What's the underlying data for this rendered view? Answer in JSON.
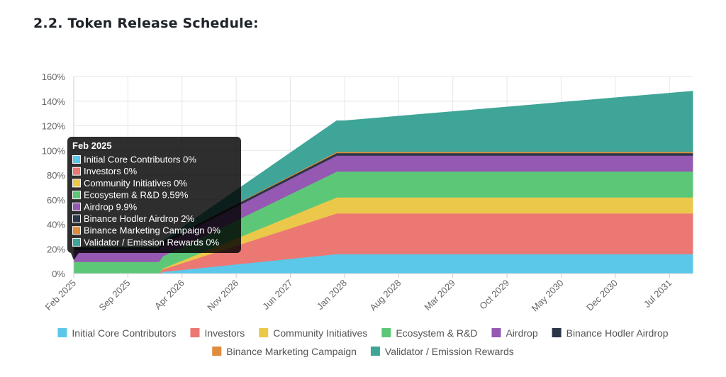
{
  "page": {
    "heading": "2.2. Token Release Schedule:"
  },
  "chart_data": {
    "type": "area",
    "stacked": true,
    "title": "",
    "xlabel": "",
    "ylabel": "",
    "ylim": [
      0,
      160
    ],
    "y_ticks": [
      0,
      20,
      40,
      60,
      80,
      100,
      120,
      140,
      160
    ],
    "y_tick_labels": [
      "0%",
      "20%",
      "40%",
      "60%",
      "80%",
      "100%",
      "120%",
      "140%",
      "160%"
    ],
    "x_range": [
      0,
      80
    ],
    "x_tick_months": [
      0,
      7,
      14,
      21,
      28,
      35,
      42,
      49,
      56,
      63,
      70,
      77
    ],
    "x_tick_labels": [
      "Feb 2025",
      "Sep 2025",
      "Apr 2026",
      "Nov 2026",
      "Jun 2027",
      "Jan 2028",
      "Aug 2028",
      "Mar 2029",
      "Oct 2029",
      "May 2030",
      "Dec 2030",
      "Jul 2031"
    ],
    "grid": true,
    "legend": "bottom",
    "x": [
      0,
      11,
      11.5,
      34,
      35,
      80
    ],
    "series": [
      {
        "name": "Initial Core Contributors",
        "color": "#5bc8ea",
        "values": [
          0,
          0,
          1.5,
          16,
          16,
          16
        ]
      },
      {
        "name": "Investors",
        "color": "#ec7873",
        "values": [
          0,
          0,
          2,
          33,
          33,
          33
        ]
      },
      {
        "name": "Community Initiatives",
        "color": "#ecc84a",
        "values": [
          0,
          0,
          0.7,
          13,
          13,
          13
        ]
      },
      {
        "name": "Ecosystem & R&D",
        "color": "#5cc877",
        "values": [
          9.59,
          9.59,
          9.9,
          21,
          21,
          21
        ]
      },
      {
        "name": "Airdrop",
        "color": "#9558b3",
        "values": [
          9.9,
          9.9,
          10,
          13,
          13,
          13
        ]
      },
      {
        "name": "Binance Hodler Airdrop",
        "color": "#2a3548",
        "values": [
          2,
          2,
          2,
          2,
          2,
          2
        ]
      },
      {
        "name": "Binance Marketing Campaign",
        "color": "#e08c3d",
        "values": [
          0,
          0,
          0,
          1,
          1,
          1
        ]
      },
      {
        "name": "Validator / Emission Rewards",
        "color": "#3ea598",
        "values": [
          0,
          0,
          0.2,
          25,
          25,
          49
        ]
      }
    ],
    "tooltip": {
      "title": "Feb 2025",
      "items": [
        {
          "label": "Initial Core Contributors 0%",
          "color": "#5bc8ea"
        },
        {
          "label": "Investors 0%",
          "color": "#ec7873"
        },
        {
          "label": "Community Initiatives 0%",
          "color": "#ecc84a"
        },
        {
          "label": "Ecosystem & R&D 9.59%",
          "color": "#5cc877"
        },
        {
          "label": "Airdrop 9.9%",
          "color": "#9558b3"
        },
        {
          "label": "Binance Hodler Airdrop 2%",
          "color": "#2a3548"
        },
        {
          "label": "Binance Marketing Campaign 0%",
          "color": "#e08c3d"
        },
        {
          "label": "Validator / Emission Rewards 0%",
          "color": "#3ea598"
        }
      ]
    }
  }
}
